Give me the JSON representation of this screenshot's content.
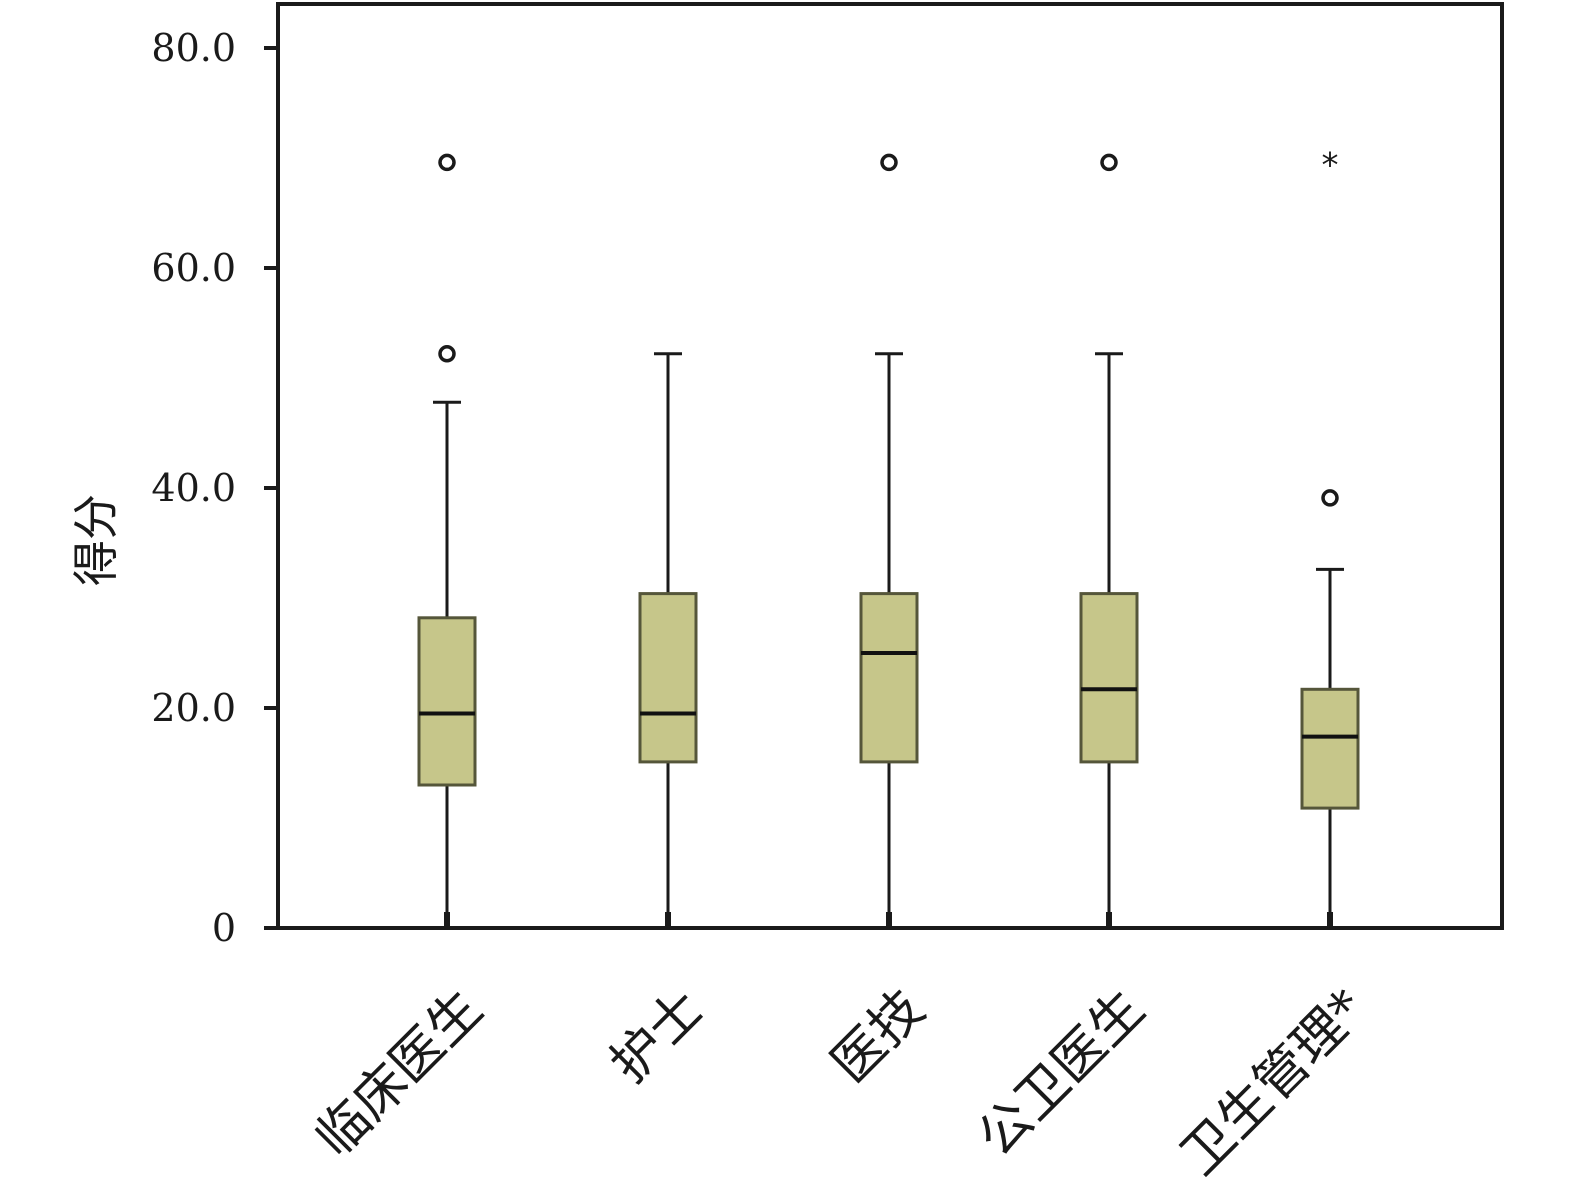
{
  "chart_data": {
    "type": "boxplot",
    "title": "",
    "xlabel": "",
    "ylabel": "得分",
    "ylim": [
      0,
      84
    ],
    "yticks": [
      0,
      20,
      40,
      60,
      80
    ],
    "ytick_labels": [
      "0",
      "20.0",
      "40.0",
      "60.0",
      "80.0"
    ],
    "grid": false,
    "box_color": "#c6c68a",
    "categories": [
      "临床医生",
      "护士",
      "医技",
      "公卫医生",
      "卫生管理*"
    ],
    "boxes": [
      {
        "category": "临床医生",
        "whisker_low": 1,
        "q1": 13,
        "median": 19.5,
        "q3": 28.2,
        "whisker_high": 47.8,
        "outliers": [
          {
            "value": 69.6,
            "kind": "circle"
          },
          {
            "value": 52.2,
            "kind": "circle"
          }
        ]
      },
      {
        "category": "护士",
        "whisker_low": 1,
        "q1": 15.1,
        "median": 19.5,
        "q3": 30.4,
        "whisker_high": 52.2,
        "outliers": []
      },
      {
        "category": "医技",
        "whisker_low": 1,
        "q1": 15.1,
        "median": 25,
        "q3": 30.4,
        "whisker_high": 52.2,
        "outliers": [
          {
            "value": 69.6,
            "kind": "circle"
          }
        ]
      },
      {
        "category": "公卫医生",
        "whisker_low": 1,
        "q1": 15.1,
        "median": 21.7,
        "q3": 30.4,
        "whisker_high": 52.2,
        "outliers": [
          {
            "value": 69.6,
            "kind": "circle"
          }
        ]
      },
      {
        "category": "卫生管理*",
        "whisker_low": 1,
        "q1": 10.9,
        "median": 17.4,
        "q3": 21.7,
        "whisker_high": 32.6,
        "outliers": [
          {
            "value": 69.6,
            "kind": "star"
          },
          {
            "value": 39.1,
            "kind": "circle"
          }
        ]
      }
    ]
  }
}
